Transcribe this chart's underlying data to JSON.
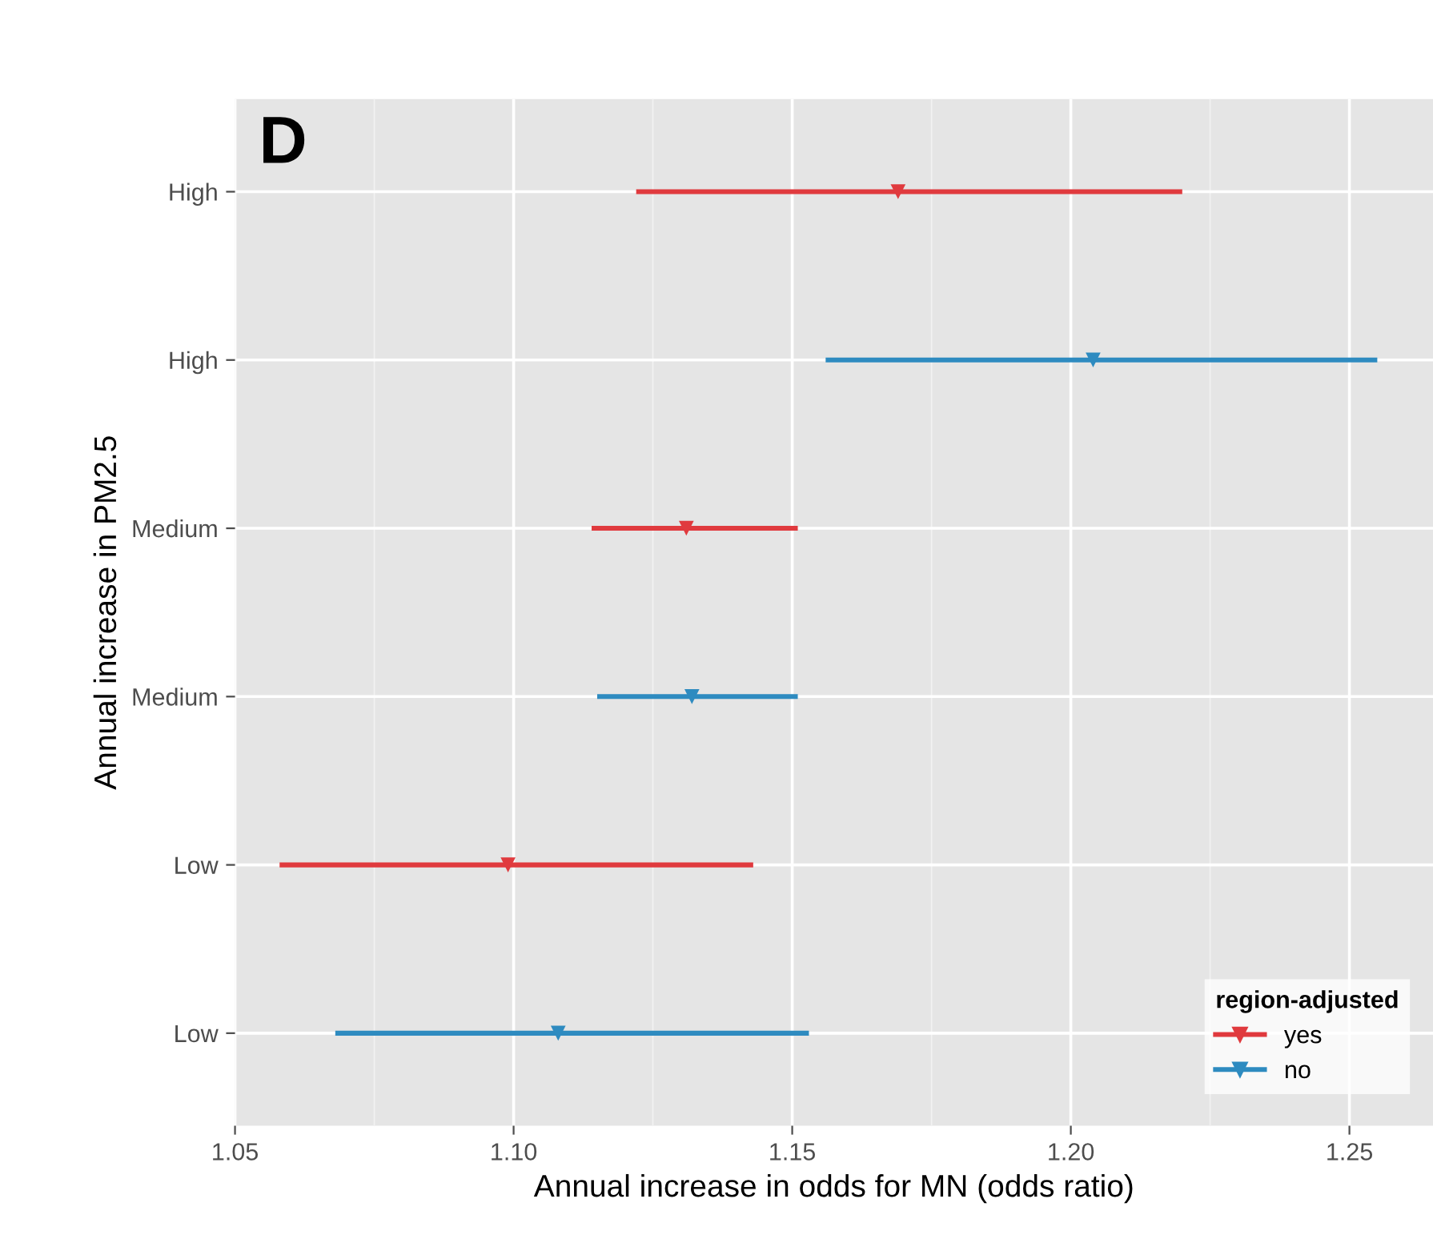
{
  "chart_data": {
    "type": "scatter",
    "orientation": "horizontal",
    "xlabel": "Annual increase in odds for MN (odds ratio)",
    "ylabel": "Annual increase in PM2.5",
    "legend_title": "region-adjusted",
    "legend": "bottom right",
    "grid": true,
    "marker": "triangle",
    "annotations": [
      "D"
    ],
    "categories": [
      "High",
      "High",
      "Medium",
      "Medium",
      "Low",
      "Low"
    ],
    "series": [
      {
        "name": "yes",
        "color": "#e03a3e",
        "values": [
          1.169,
          null,
          1.131,
          null,
          1.099,
          null
        ],
        "errors": [
          [
            1.122,
            1.22
          ],
          null,
          [
            1.114,
            1.151
          ],
          null,
          [
            1.058,
            1.143
          ],
          null
        ]
      },
      {
        "name": "no",
        "color": "#2e8bc0",
        "values": [
          null,
          1.204,
          null,
          1.132,
          null,
          1.108
        ],
        "errors": [
          null,
          [
            1.156,
            1.255
          ],
          null,
          [
            1.115,
            1.151
          ],
          null,
          [
            1.068,
            1.153
          ]
        ]
      }
    ],
    "xlim": [
      1.05,
      1.265
    ],
    "xticks": [
      1.05,
      {
        "value": 1.1,
        "label": "1.10"
      },
      1.15,
      {
        "value": 1.2,
        "label": "1.20"
      },
      1.25
    ]
  }
}
